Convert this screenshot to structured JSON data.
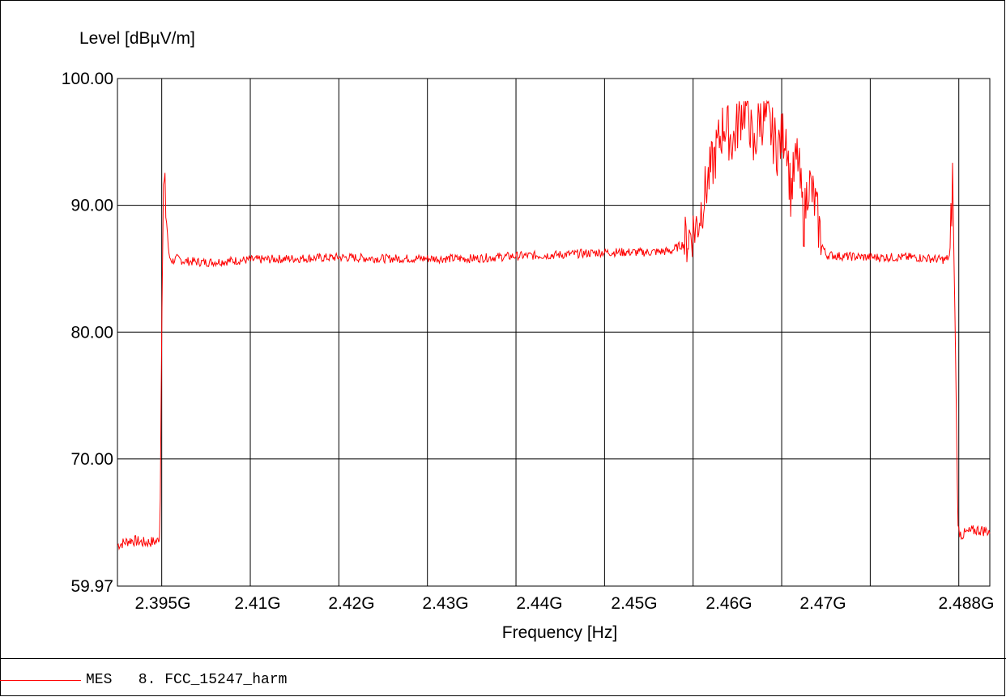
{
  "chart_data": {
    "type": "line",
    "title": "",
    "ylabel": "Level [dBµV/m]",
    "xlabel": "Frequency [Hz]",
    "ylim": [
      59.97,
      100.0
    ],
    "xlim": [
      2390000000.0,
      2488500000.0
    ],
    "yticks": [
      {
        "value": 100.0,
        "label": "100.00"
      },
      {
        "value": 90.0,
        "label": "90.00"
      },
      {
        "value": 80.0,
        "label": "80.00"
      },
      {
        "value": 70.0,
        "label": "70.00"
      },
      {
        "value": 59.97,
        "label": "59.97"
      }
    ],
    "xticks": [
      {
        "value": 2395000000.0,
        "label": "2.395G"
      },
      {
        "value": 2410000000.0,
        "label": "2.41G"
      },
      {
        "value": 2420000000.0,
        "label": "2.42G"
      },
      {
        "value": 2430000000.0,
        "label": "2.43G"
      },
      {
        "value": 2440000000.0,
        "label": "2.44G"
      },
      {
        "value": 2450000000.0,
        "label": "2.45G"
      },
      {
        "value": 2460000000.0,
        "label": "2.46G"
      },
      {
        "value": 2470000000.0,
        "label": "2.47G"
      },
      {
        "value": 2488000000.0,
        "label": "2.488G"
      }
    ],
    "xgridlines": [
      2395000000.0,
      2405000000.0,
      2415000000.0,
      2425000000.0,
      2435000000.0,
      2445000000.0,
      2455000000.0,
      2465000000.0,
      2475000000.0,
      2485000000.0
    ],
    "grid": true,
    "series": [
      {
        "name": "MES 8. FCC_15247_harm",
        "color": "#ff0000",
        "x": [
          2390000000.0,
          2391500000.0,
          2393000000.0,
          2394500000.0,
          2394800000.0,
          2395000000.0,
          2395200000.0,
          2395500000.0,
          2395800000.0,
          2396200000.0,
          2396700000.0,
          2397500000.0,
          2400000000.0,
          2405000000.0,
          2410000000.0,
          2415000000.0,
          2420000000.0,
          2425000000.0,
          2430000000.0,
          2435000000.0,
          2440000000.0,
          2445000000.0,
          2450000000.0,
          2452500000.0,
          2454000000.0,
          2455500000.0,
          2456500000.0,
          2457500000.0,
          2458500000.0,
          2459500000.0,
          2460500000.0,
          2461200000.0,
          2461800000.0,
          2462500000.0,
          2463500000.0,
          2464500000.0,
          2465500000.0,
          2466000000.0,
          2466800000.0,
          2467500000.0,
          2468000000.0,
          2468800000.0,
          2469500000.0,
          2470000000.0,
          2471500000.0,
          2475000000.0,
          2480000000.0,
          2483500000.0,
          2484000000.0,
          2484300000.0,
          2484600000.0,
          2484900000.0,
          2485300000.0,
          2486000000.0,
          2487000000.0,
          2488500000.0
        ],
        "y": [
          63.2,
          63.6,
          63.4,
          63.5,
          64.0,
          80.0,
          92.0,
          89.5,
          86.0,
          85.6,
          85.8,
          85.6,
          85.5,
          85.7,
          85.8,
          85.9,
          85.8,
          85.8,
          85.8,
          86.0,
          86.1,
          86.3,
          86.3,
          86.4,
          87.0,
          88.5,
          91.5,
          94.0,
          96.5,
          95.0,
          97.5,
          98.0,
          94.0,
          97.0,
          96.5,
          94.5,
          96.0,
          91.0,
          94.0,
          88.5,
          92.0,
          90.0,
          87.0,
          86.1,
          86.0,
          85.9,
          85.9,
          85.7,
          86.0,
          92.2,
          80.0,
          64.5,
          64.0,
          64.2,
          64.4,
          64.3
        ]
      }
    ]
  },
  "legend": {
    "text": "MES   8. FCC_15247_harm"
  }
}
